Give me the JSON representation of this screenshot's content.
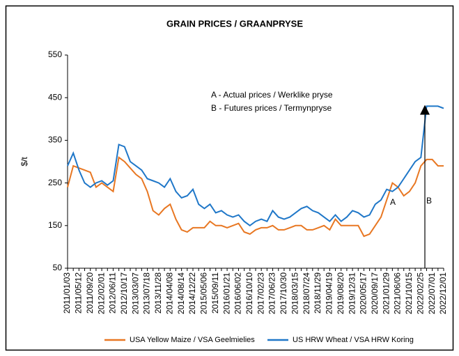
{
  "chart_data": {
    "type": "line",
    "title": "GRAIN PRICES / GRAANPRYSE",
    "y_label": "$/t",
    "annotations": [
      "A - Actual prices / Werklike pryse",
      "B - Futures  prices / Termynpryse",
      "A",
      "B"
    ],
    "categories": [
      "2011/01/03",
      null,
      "2011/05/12",
      null,
      "2011/09/20",
      null,
      "2012/02/01",
      null,
      "2012/06/11",
      null,
      "2012/10/17",
      null,
      "2013/03/07",
      null,
      "2013/07/18",
      null,
      "2013/11/28",
      null,
      "2014/04/08",
      null,
      "2014/08/14",
      null,
      "2014/12/22",
      null,
      "2015/05/06",
      null,
      "2015/09/11",
      null,
      "2016/01/21",
      null,
      "2016/06/02",
      null,
      "2016/10/10",
      null,
      "2017/02/23",
      null,
      "2017/06/23",
      null,
      "2017/10/30",
      null,
      "2018/03/15",
      null,
      "2018/07/24",
      null,
      "2018/11/29",
      null,
      "2019/04/19",
      null,
      "2019/08/20",
      null,
      "2019/12/31",
      null,
      "2020/05/17",
      null,
      "2020/09/17",
      null,
      "2021/01/29",
      null,
      "2021/06/06",
      null,
      "2021/10/15",
      null,
      "2022/02/25",
      null,
      "2022/07/01",
      null,
      "2022/12/01"
    ],
    "series": [
      {
        "name": "USA Yellow Maize / VSA Geelmielies",
        "color": "#e87722",
        "values": [
          240,
          290,
          285,
          280,
          275,
          240,
          250,
          240,
          230,
          310,
          300,
          285,
          270,
          260,
          230,
          185,
          175,
          190,
          200,
          165,
          140,
          135,
          145,
          145,
          145,
          160,
          150,
          150,
          145,
          150,
          155,
          135,
          130,
          140,
          145,
          145,
          150,
          140,
          140,
          145,
          150,
          150,
          140,
          140,
          145,
          150,
          140,
          165,
          150,
          150,
          150,
          150,
          125,
          130,
          150,
          170,
          210,
          250,
          240,
          220,
          230,
          250,
          290,
          305,
          305,
          290,
          290
        ]
      },
      {
        "name": "US HRW Wheat / VSA HRW Koring",
        "color": "#1f77c8",
        "values": [
          290,
          320,
          280,
          250,
          240,
          250,
          255,
          245,
          255,
          340,
          335,
          300,
          290,
          280,
          260,
          255,
          250,
          240,
          260,
          230,
          215,
          220,
          235,
          200,
          190,
          200,
          180,
          185,
          175,
          170,
          175,
          160,
          150,
          160,
          165,
          160,
          185,
          170,
          165,
          170,
          180,
          190,
          195,
          185,
          180,
          170,
          160,
          175,
          160,
          170,
          185,
          180,
          170,
          175,
          200,
          210,
          235,
          230,
          240,
          260,
          280,
          300,
          310,
          430,
          430,
          430,
          425
        ]
      }
    ],
    "ylim": [
      50,
      550
    ],
    "yticks": [
      50,
      150,
      250,
      350,
      450,
      550
    ]
  }
}
